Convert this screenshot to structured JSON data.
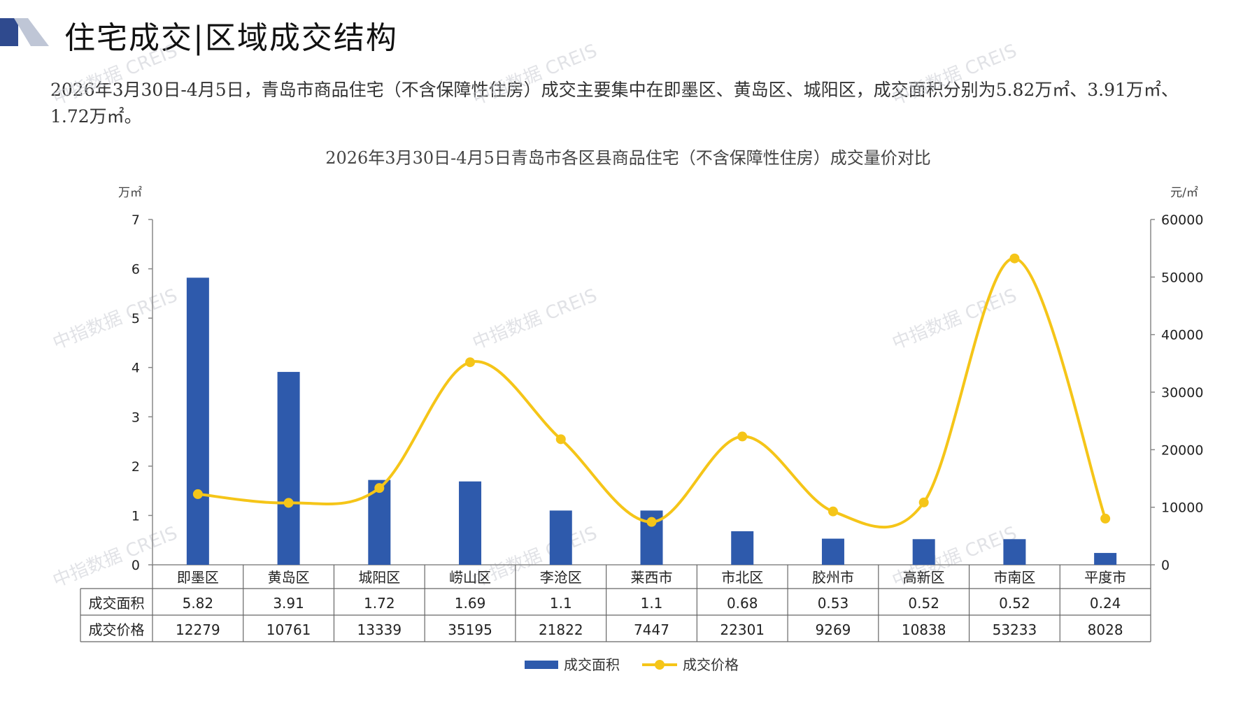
{
  "header": {
    "title": "住宅成交|区域成交结构",
    "summary": "2026年3月30日-4月5日，青岛市商品住宅（不含保障性住房）成交主要集中在即墨区、黄岛区、城阳区，成交面积分别为5.82万㎡、3.91万㎡、1.72万㎡。"
  },
  "watermark": "中指数据 CREIS",
  "colors": {
    "bar": "#2E5AAC",
    "line": "#F5C518",
    "logo_dark": "#2F4A8E",
    "logo_light": "#BFC6D6"
  },
  "chart_data": {
    "type": "bar",
    "title": "2026年3月30日-4月5日青岛市各区县商品住宅（不含保障性住房）成交量价对比",
    "categories": [
      "即墨区",
      "黄岛区",
      "城阳区",
      "崂山区",
      "李沧区",
      "莱西市",
      "市北区",
      "胶州市",
      "高新区",
      "市南区",
      "平度市"
    ],
    "y_left": {
      "unit": "万㎡",
      "ylim": [
        0,
        7
      ],
      "ticks": [
        0,
        1,
        2,
        3,
        4,
        5,
        6,
        7
      ]
    },
    "y_right": {
      "unit": "元/㎡",
      "ylim": [
        0,
        60000
      ],
      "ticks": [
        0,
        10000,
        20000,
        30000,
        40000,
        50000,
        60000
      ]
    },
    "series": [
      {
        "name": "成交面积",
        "type": "bar",
        "axis": "left",
        "values": [
          5.82,
          3.91,
          1.72,
          1.69,
          1.1,
          1.1,
          0.68,
          0.53,
          0.52,
          0.52,
          0.24
        ]
      },
      {
        "name": "成交价格",
        "type": "line",
        "axis": "right",
        "values": [
          12279,
          10761,
          13339,
          35195,
          21822,
          7447,
          22301,
          9269,
          10838,
          53233,
          8028
        ]
      }
    ],
    "table": {
      "rows": [
        {
          "label": "成交面积",
          "cells": [
            "5.82",
            "3.91",
            "1.72",
            "1.69",
            "1.1",
            "1.1",
            "0.68",
            "0.53",
            "0.52",
            "0.52",
            "0.24"
          ]
        },
        {
          "label": "成交价格",
          "cells": [
            "12279",
            "10761",
            "13339",
            "35195",
            "21822",
            "7447",
            "22301",
            "9269",
            "10838",
            "53233",
            "8028"
          ]
        }
      ]
    },
    "legend": {
      "position": "bottom",
      "entries": [
        "成交面积",
        "成交价格"
      ]
    },
    "grid": false
  }
}
